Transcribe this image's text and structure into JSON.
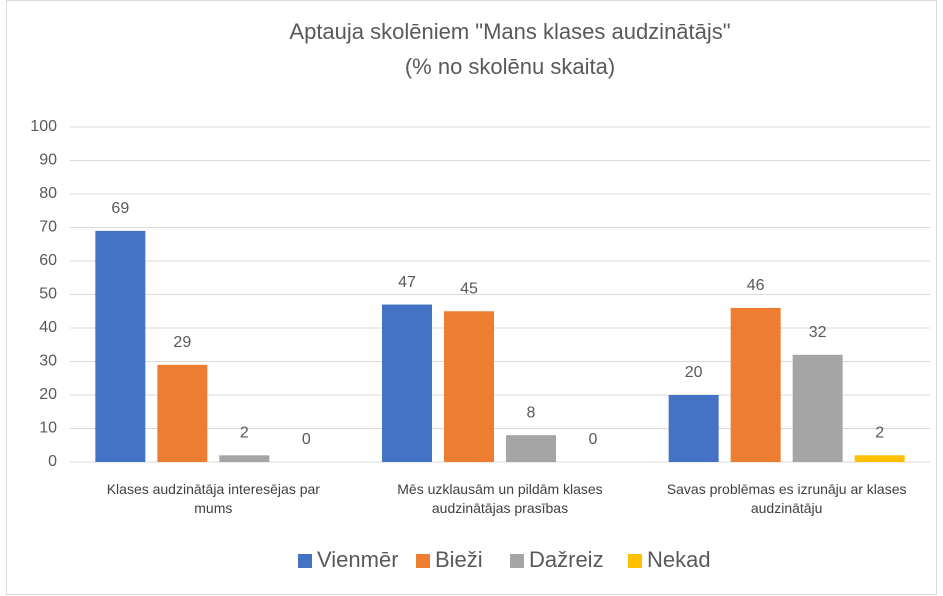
{
  "chart_data": {
    "type": "bar",
    "title": "Aptauja skolēniem \"Mans klases audzinātājs\"",
    "subtitle": "(% no skolēnu skaita)",
    "categories": [
      "Klases audzinātāja interesējas par mums",
      "Mēs uzklausām un pildām klases audzinātājas prasības",
      "Savas problēmas es izrunāju ar klases audzinātāju"
    ],
    "series": [
      {
        "name": "Vienmēr",
        "color": "#4472c4",
        "values": [
          69,
          47,
          20
        ]
      },
      {
        "name": "Bieži",
        "color": "#ed7d31",
        "values": [
          29,
          45,
          46
        ]
      },
      {
        "name": "Dažreiz",
        "color": "#a5a5a5",
        "values": [
          2,
          8,
          32
        ]
      },
      {
        "name": "Nekad",
        "color": "#ffc000",
        "values": [
          0,
          0,
          2
        ]
      }
    ],
    "ylim": [
      0,
      100
    ],
    "yticks": [
      0,
      10,
      20,
      30,
      40,
      50,
      60,
      70,
      80,
      90,
      100
    ],
    "grid": true,
    "legend": "bottom"
  }
}
